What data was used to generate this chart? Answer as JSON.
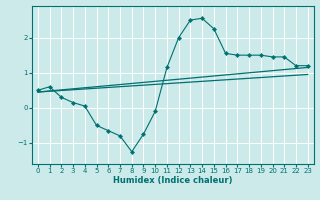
{
  "xlabel": "Humidex (Indice chaleur)",
  "background_color": "#cceaea",
  "grid_color": "#ffffff",
  "line_color": "#007070",
  "xlim": [
    -0.5,
    23.5
  ],
  "ylim": [
    -1.6,
    2.9
  ],
  "xticks": [
    0,
    1,
    2,
    3,
    4,
    5,
    6,
    7,
    8,
    9,
    10,
    11,
    12,
    13,
    14,
    15,
    16,
    17,
    18,
    19,
    20,
    21,
    22,
    23
  ],
  "yticks": [
    -1,
    0,
    1,
    2
  ],
  "series1_x": [
    0,
    1,
    2,
    3,
    4,
    5,
    6,
    7,
    8,
    9,
    10,
    11,
    12,
    13,
    14,
    15,
    16,
    17,
    18,
    19,
    20,
    21,
    22,
    23
  ],
  "series1_y": [
    0.5,
    0.6,
    0.3,
    0.15,
    0.05,
    -0.5,
    -0.65,
    -0.8,
    -1.25,
    -0.75,
    -0.1,
    1.15,
    2.0,
    2.5,
    2.55,
    2.25,
    1.55,
    1.5,
    1.5,
    1.5,
    1.45,
    1.45,
    1.2,
    1.2
  ],
  "series2_x": [
    0,
    23
  ],
  "series2_y": [
    0.45,
    0.95
  ],
  "series3_x": [
    0,
    23
  ],
  "series3_y": [
    0.45,
    1.15
  ]
}
